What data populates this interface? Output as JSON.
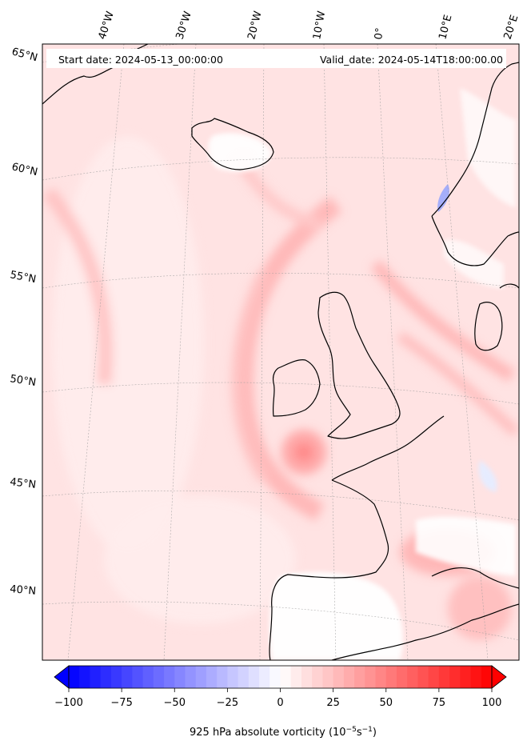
{
  "header": {
    "start_date": "Start date: 2024-05-13_00:00:00",
    "valid_date": "Valid_date: 2024-05-14T18:00:00.00"
  },
  "longitude_labels": [
    "40°W",
    "30°W",
    "20°W",
    "10°W",
    "0°",
    "10°E",
    "20°E"
  ],
  "latitude_labels": [
    "65°N",
    "60°N",
    "55°N",
    "50°N",
    "45°N",
    "40°N"
  ],
  "colorbar": {
    "min": -100,
    "max": 100,
    "ticks": [
      "−100",
      "−75",
      "−50",
      "−25",
      "0",
      "25",
      "50",
      "75",
      "100"
    ],
    "label": "925 hPa absolute vorticity (10",
    "label_exp1": "−5",
    "label_mid": "s",
    "label_exp2": "−1",
    "label_end": ")",
    "negative_color": "#0000ff",
    "zero_color": "#ffffff",
    "positive_color": "#ff0000"
  }
}
